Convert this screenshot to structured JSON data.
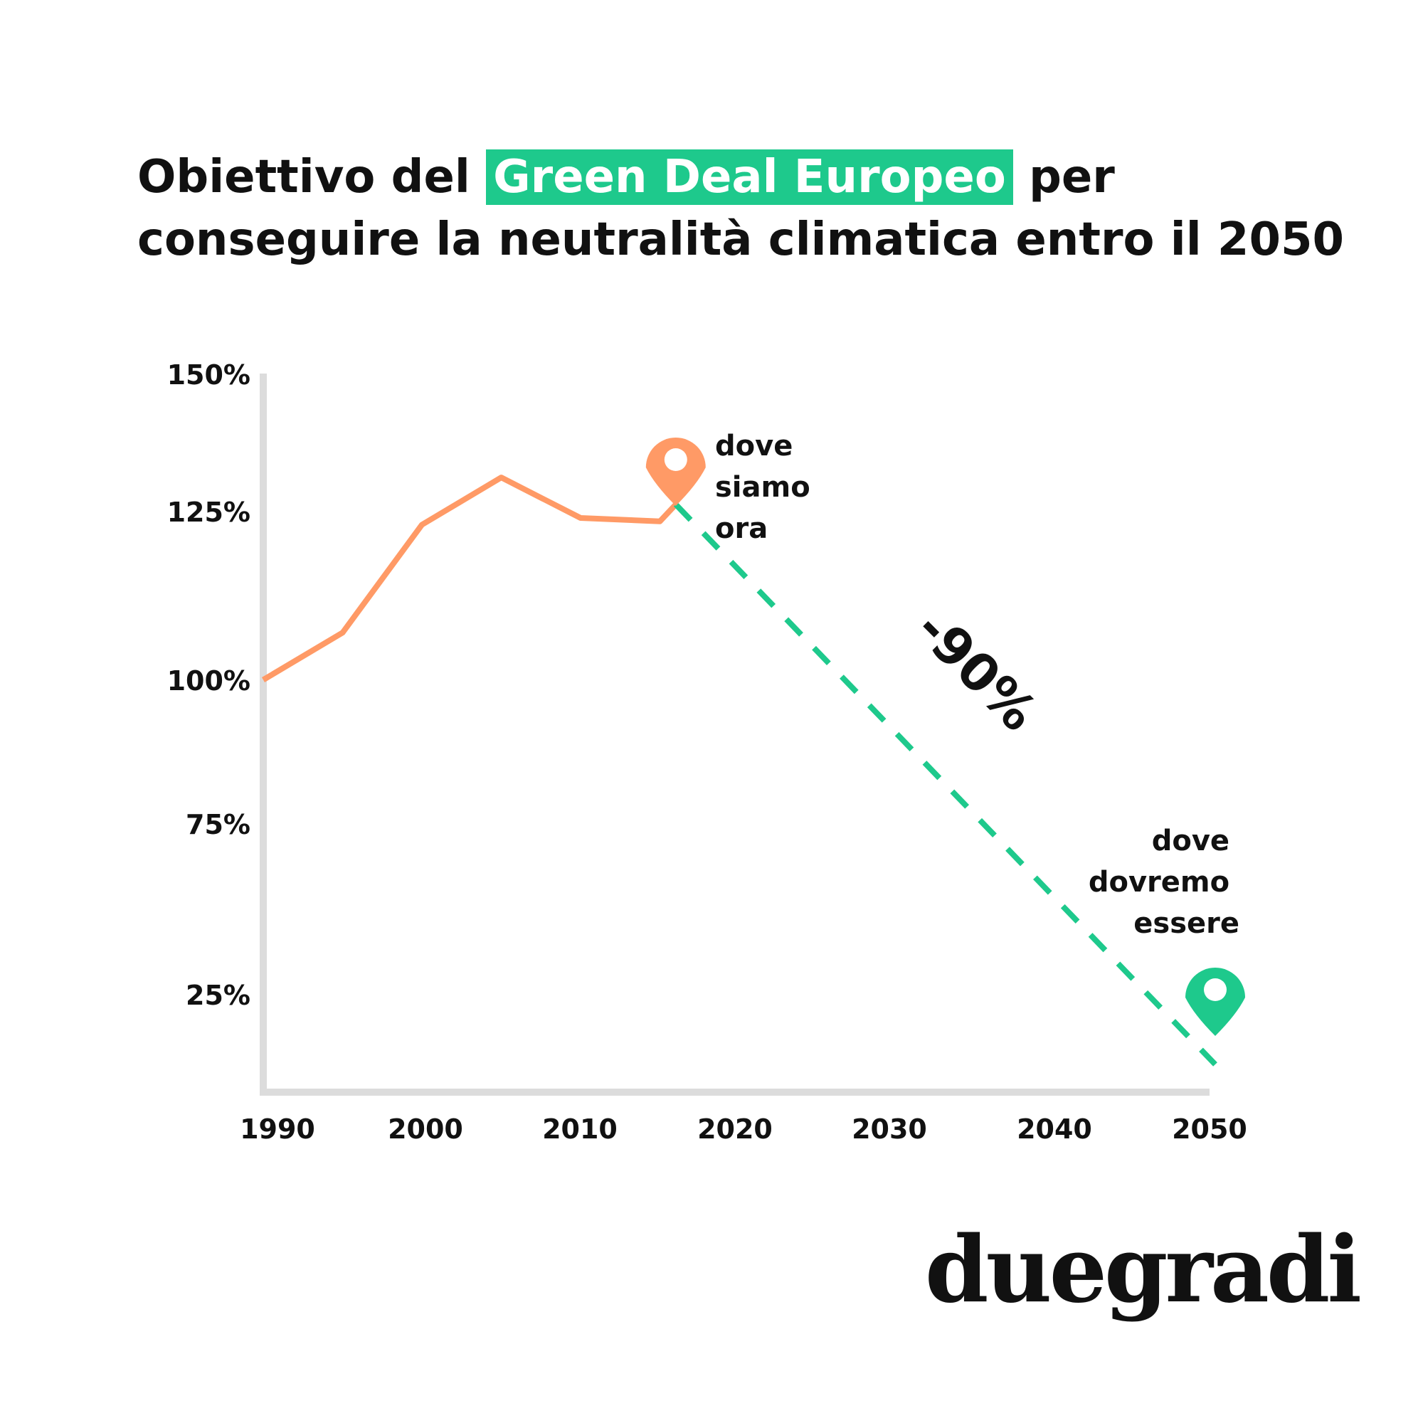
{
  "title": {
    "before": "Obiettivo del ",
    "highlight": "Green Deal Europeo",
    "after": " per conseguire la neutralità climatica entro il 2050"
  },
  "colors": {
    "historical": "#FF9A66",
    "target": "#1EC98C",
    "axis": "#DCDCDC",
    "text": "#111111"
  },
  "chart_data": {
    "type": "line",
    "title": "Obiettivo del Green Deal Europeo per conseguire la neutralità climatica entro il 2050",
    "xlabel": "",
    "ylabel": "",
    "y_tick_labels": [
      "150%",
      "125%",
      "100%",
      "75%",
      "25%"
    ],
    "x_ticks": [
      "1990",
      "2000",
      "2010",
      "2020",
      "2030",
      "2040",
      "2050"
    ],
    "xlim": [
      1990,
      2050
    ],
    "grid": false,
    "legend": "none",
    "series": [
      {
        "style": "solid",
        "color": "#FF9A66",
        "x": [
          1990,
          1995,
          2000,
          2005,
          2010,
          2015,
          2016
        ],
        "y": [
          101,
          108,
          124,
          131,
          125,
          124.5,
          127
        ]
      },
      {
        "style": "dashed",
        "color": "#1EC98C",
        "x": [
          2016,
          2050
        ],
        "y": [
          127,
          10
        ]
      }
    ],
    "annotations": {
      "current": "dove siamo ora",
      "target": "dove dovremo essere",
      "change": "-90%"
    }
  },
  "brand": {
    "logo": "duegradi"
  }
}
